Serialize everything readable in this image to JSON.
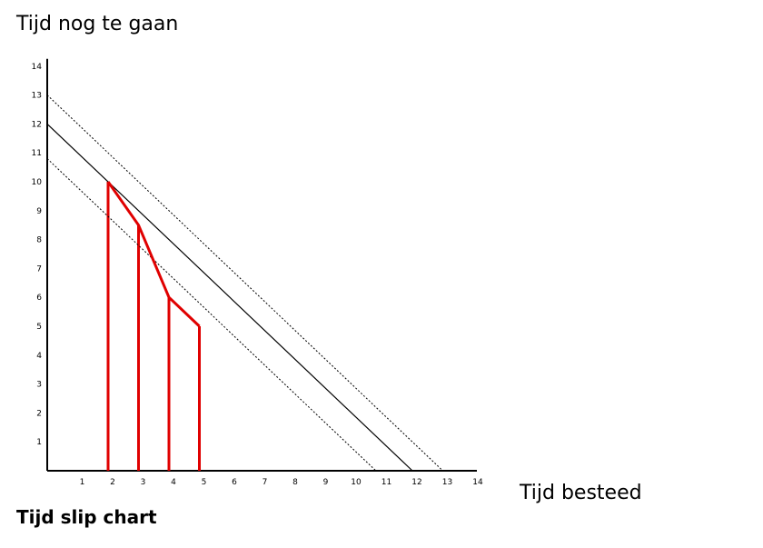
{
  "chart_data": {
    "type": "line",
    "ylabel": "Tijd nog te gaan",
    "xlabel": "Tijd besteed",
    "caption": "Tijd slip chart",
    "xlim": [
      0,
      14
    ],
    "ylim": [
      0,
      14
    ],
    "x_ticks": [
      "1",
      "2",
      "3",
      "4",
      "5",
      "6",
      "7",
      "8",
      "9",
      "10",
      "11",
      "12",
      "13",
      "14"
    ],
    "y_ticks": [
      "1",
      "2",
      "3",
      "4",
      "5",
      "6",
      "7",
      "8",
      "9",
      "10",
      "11",
      "12",
      "13",
      "14"
    ],
    "grid": false,
    "series": [
      {
        "style": "dotted",
        "color": "#000000",
        "x": [
          0,
          13.0
        ],
        "y": [
          13.0,
          0
        ]
      },
      {
        "style": "solid",
        "color": "#000000",
        "x": [
          0,
          12.0
        ],
        "y": [
          12.0,
          0
        ]
      },
      {
        "style": "dotted",
        "color": "#000000",
        "x": [
          0,
          10.8
        ],
        "y": [
          10.8,
          0
        ]
      },
      {
        "style": "bold",
        "color": "#e00000",
        "x": [
          2.0,
          3.0,
          4.0,
          5.0
        ],
        "y": [
          10.0,
          8.5,
          6.0,
          5.0
        ]
      }
    ],
    "verticals": [
      {
        "x": 2.0,
        "y": 10.0,
        "color": "#e00000"
      },
      {
        "x": 3.0,
        "y": 8.5,
        "color": "#e00000"
      },
      {
        "x": 4.0,
        "y": 6.0,
        "color": "#e00000"
      },
      {
        "x": 5.0,
        "y": 5.0,
        "color": "#e00000"
      }
    ]
  }
}
